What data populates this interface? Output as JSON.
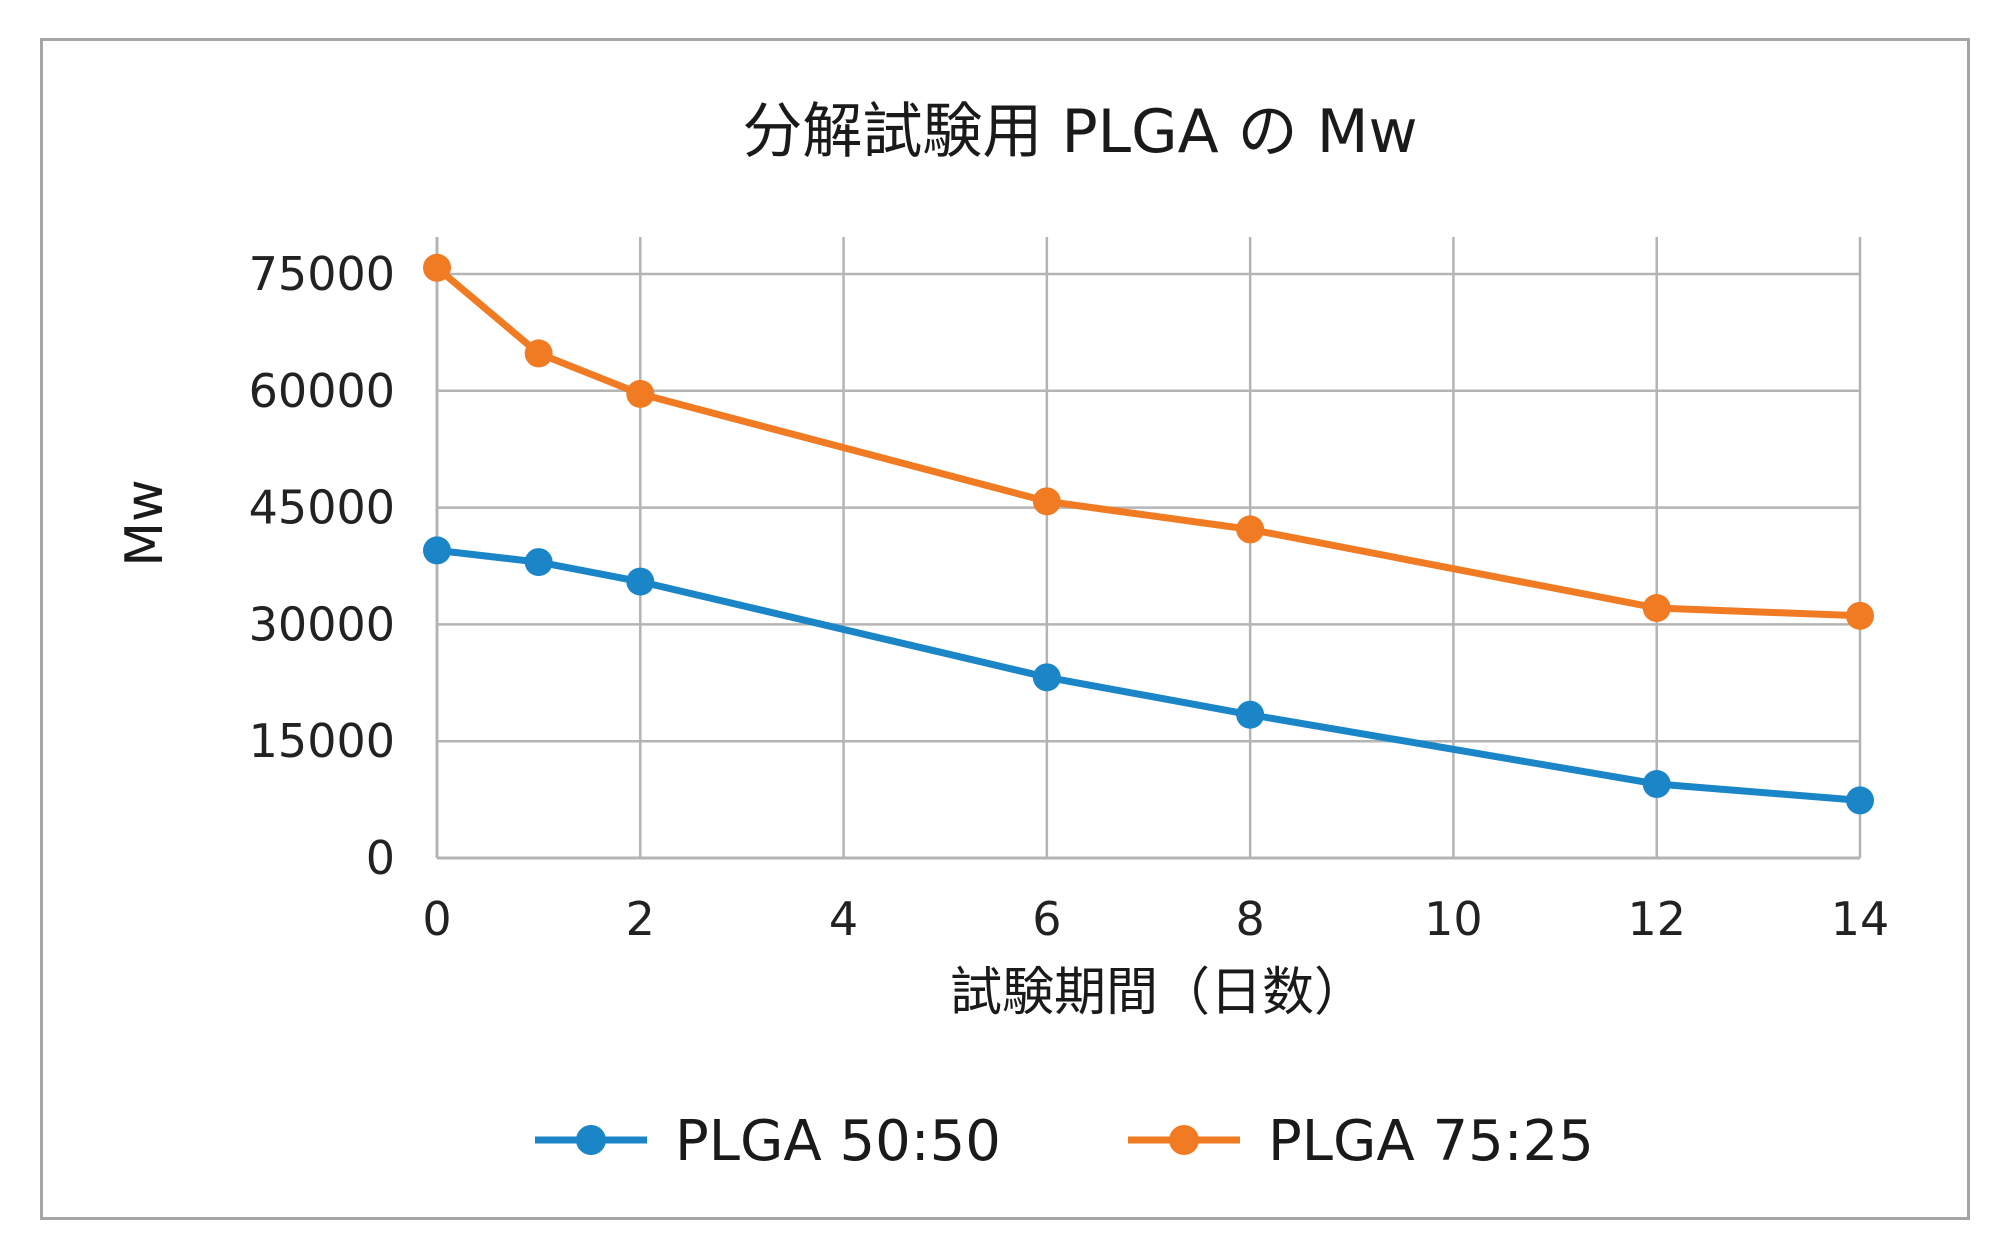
{
  "chart_data": {
    "type": "line",
    "title": "分解試験用 PLGA の Mw",
    "xlabel": "試験期間（日数）",
    "ylabel": "Mw",
    "xlim": [
      0,
      14
    ],
    "ylim": [
      0,
      80000
    ],
    "x_ticks": [
      0,
      2,
      4,
      6,
      8,
      10,
      12,
      14
    ],
    "y_ticks": [
      0,
      15000,
      30000,
      45000,
      60000,
      75000
    ],
    "grid": true,
    "legend_position": "bottom",
    "series": [
      {
        "name": "PLGA 50:50",
        "color": "#1a86c8",
        "x": [
          0,
          1,
          2,
          6,
          8,
          12,
          14
        ],
        "y": [
          39500,
          38000,
          35500,
          23200,
          18400,
          9500,
          7400
        ]
      },
      {
        "name": "PLGA 75:25",
        "color": "#f07b23",
        "x": [
          0,
          1,
          2,
          6,
          8,
          12,
          14
        ],
        "y": [
          75800,
          64800,
          59600,
          45800,
          42200,
          32100,
          31100
        ]
      }
    ]
  }
}
